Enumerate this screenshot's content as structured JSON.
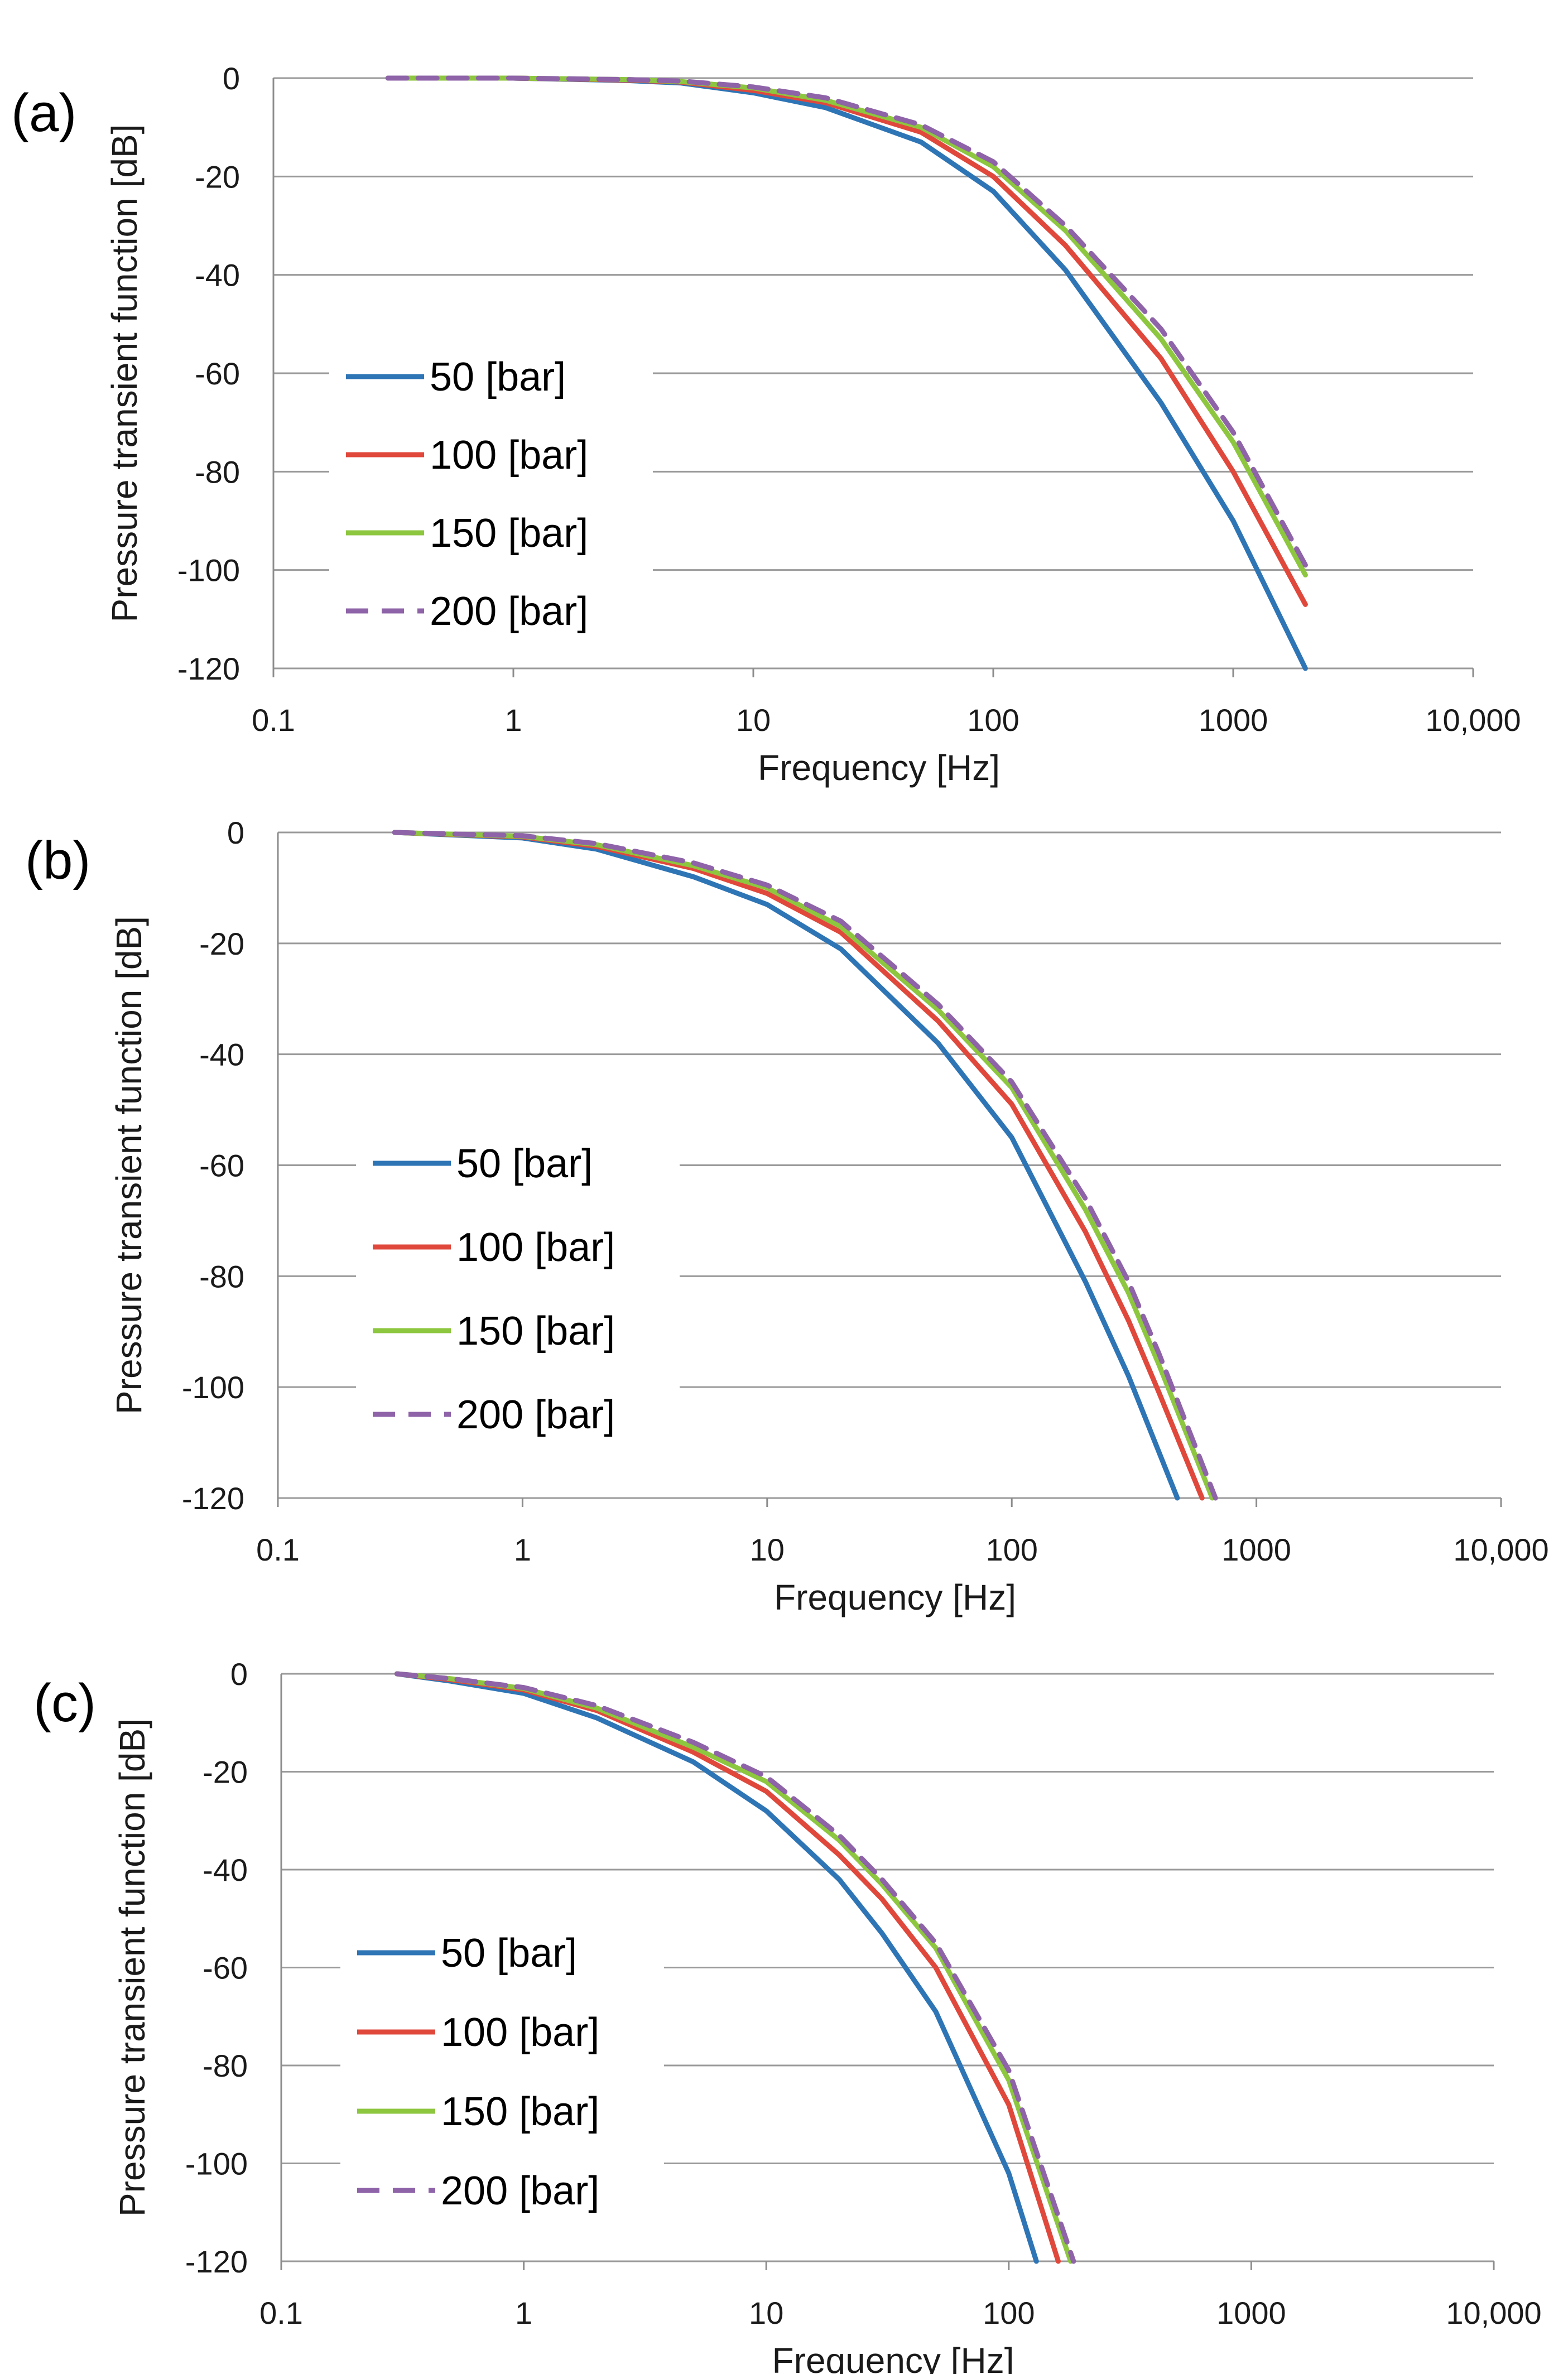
{
  "colors": {
    "series_50": "#2E75B6",
    "series_100": "#E0483C",
    "series_150": "#8DC63F",
    "series_200": "#8E63A8",
    "grid": "#9a9a9a",
    "text": "#1a1a1a"
  },
  "chart_data": [
    {
      "type": "line",
      "panel_label": "(a)",
      "title": "",
      "xlabel": "Frequency [Hz]",
      "ylabel": "Pressure transient function [dB]",
      "xscale": "log",
      "xlim": [
        0.1,
        10000
      ],
      "ylim": [
        -120,
        0
      ],
      "x_ticks": [
        0.1,
        1,
        10,
        100,
        1000,
        10000
      ],
      "x_tick_labels": [
        "0.1",
        "1",
        "10",
        "100",
        "1000",
        "10,000"
      ],
      "y_ticks": [
        0,
        -20,
        -40,
        -60,
        -80,
        -100,
        -120
      ],
      "y_tick_labels": [
        "0",
        "-20",
        "-40",
        "-60",
        "-80",
        "-100",
        "-120"
      ],
      "grid": "horizontal",
      "legend_position": "middle-left",
      "series": [
        {
          "name": "50 [bar]",
          "dash": "solid",
          "x": [
            0.3,
            1,
            3,
            5,
            10,
            20,
            50,
            100,
            200,
            500,
            1000,
            2000
          ],
          "y": [
            0,
            0,
            -0.5,
            -1,
            -3,
            -6,
            -13,
            -23,
            -39,
            -66,
            -90,
            -120
          ]
        },
        {
          "name": "100 [bar]",
          "dash": "solid",
          "x": [
            0.3,
            1,
            3,
            5,
            10,
            20,
            50,
            100,
            200,
            500,
            1000,
            2000
          ],
          "y": [
            0,
            0,
            -0.4,
            -0.8,
            -2.5,
            -5,
            -11,
            -20,
            -34,
            -57,
            -80,
            -107
          ]
        },
        {
          "name": "150 [bar]",
          "dash": "solid",
          "x": [
            0.3,
            1,
            3,
            5,
            10,
            20,
            50,
            100,
            200,
            500,
            1000,
            2000
          ],
          "y": [
            0,
            0,
            -0.3,
            -0.7,
            -2,
            -4.5,
            -10,
            -18,
            -31,
            -53,
            -74,
            -101
          ]
        },
        {
          "name": "200 [bar]",
          "dash": "dashed",
          "x": [
            0.3,
            1,
            3,
            5,
            10,
            20,
            50,
            100,
            200,
            500,
            1000,
            2000
          ],
          "y": [
            0,
            0,
            -0.3,
            -0.6,
            -1.8,
            -4,
            -9.5,
            -17,
            -30,
            -51,
            -72,
            -99
          ]
        }
      ]
    },
    {
      "type": "line",
      "panel_label": "(b)",
      "title": "",
      "xlabel": "Frequency [Hz]",
      "ylabel": "Pressure transient function [dB]",
      "xscale": "log",
      "xlim": [
        0.1,
        10000
      ],
      "ylim": [
        -120,
        0
      ],
      "x_ticks": [
        0.1,
        1,
        10,
        100,
        1000,
        10000
      ],
      "x_tick_labels": [
        "0.1",
        "1",
        "10",
        "100",
        "1000",
        "10,000"
      ],
      "y_ticks": [
        0,
        -20,
        -40,
        -60,
        -80,
        -100,
        -120
      ],
      "y_tick_labels": [
        "0",
        "-20",
        "-40",
        "-60",
        "-80",
        "-100",
        "-120"
      ],
      "grid": "horizontal",
      "legend_position": "middle-left",
      "series": [
        {
          "name": "50 [bar]",
          "dash": "solid",
          "x": [
            0.3,
            1,
            2,
            5,
            10,
            20,
            50,
            100,
            200,
            300,
            475
          ],
          "y": [
            0,
            -1,
            -3,
            -8,
            -13,
            -21,
            -38,
            -55,
            -81,
            -98,
            -120
          ]
        },
        {
          "name": "100 [bar]",
          "dash": "solid",
          "x": [
            0.3,
            1,
            2,
            5,
            10,
            20,
            50,
            100,
            200,
            300,
            400,
            600
          ],
          "y": [
            0,
            -0.8,
            -2.5,
            -6.5,
            -11,
            -18,
            -34,
            -49,
            -72,
            -88,
            -101,
            -120
          ]
        },
        {
          "name": "150 [bar]",
          "dash": "solid",
          "x": [
            0.3,
            1,
            2,
            5,
            10,
            20,
            50,
            100,
            200,
            300,
            400,
            660
          ],
          "y": [
            0,
            -0.7,
            -2.2,
            -6,
            -10,
            -17,
            -32,
            -46,
            -68,
            -83,
            -96,
            -120
          ]
        },
        {
          "name": "200 [bar]",
          "dash": "dashed",
          "x": [
            0.3,
            1,
            2,
            5,
            10,
            20,
            50,
            100,
            200,
            300,
            400,
            680
          ],
          "y": [
            0,
            -0.6,
            -2,
            -5.5,
            -9.5,
            -16,
            -31,
            -45,
            -66,
            -81,
            -94,
            -120
          ]
        }
      ]
    },
    {
      "type": "line",
      "panel_label": "(c)",
      "title": "",
      "xlabel": "Frequency [Hz]",
      "ylabel": "Pressure transient function [dB]",
      "xscale": "log",
      "xlim": [
        0.1,
        10000
      ],
      "ylim": [
        -120,
        0
      ],
      "x_ticks": [
        0.1,
        1,
        10,
        100,
        1000,
        10000
      ],
      "x_tick_labels": [
        "0.1",
        "1",
        "10",
        "100",
        "1000",
        "10,000"
      ],
      "y_ticks": [
        0,
        -20,
        -40,
        -60,
        -80,
        -100,
        -120
      ],
      "y_tick_labels": [
        "0",
        "-20",
        "-40",
        "-60",
        "-80",
        "-100",
        "-120"
      ],
      "grid": "horizontal",
      "legend_position": "middle-left",
      "series": [
        {
          "name": "50 [bar]",
          "dash": "solid",
          "x": [
            0.3,
            0.5,
            1,
            2,
            5,
            10,
            20,
            30,
            50,
            100,
            130
          ],
          "y": [
            0,
            -1.5,
            -4,
            -9,
            -18,
            -28,
            -42,
            -53,
            -69,
            -102,
            -120
          ]
        },
        {
          "name": "100 [bar]",
          "dash": "solid",
          "x": [
            0.3,
            0.5,
            1,
            2,
            5,
            10,
            20,
            30,
            50,
            100,
            160
          ],
          "y": [
            0,
            -1.2,
            -3.3,
            -7.5,
            -16,
            -24,
            -37,
            -46,
            -60,
            -88,
            -120
          ]
        },
        {
          "name": "150 [bar]",
          "dash": "solid",
          "x": [
            0.3,
            0.5,
            1,
            2,
            5,
            10,
            20,
            30,
            50,
            100,
            180
          ],
          "y": [
            0,
            -1,
            -3,
            -7,
            -15,
            -22,
            -34,
            -43,
            -56,
            -83,
            -120
          ]
        },
        {
          "name": "200 [bar]",
          "dash": "dashed",
          "x": [
            0.3,
            0.5,
            1,
            2,
            5,
            10,
            20,
            30,
            50,
            100,
            185
          ],
          "y": [
            0,
            -1,
            -2.8,
            -6.5,
            -14,
            -21,
            -33,
            -42,
            -55,
            -81,
            -120
          ]
        }
      ]
    }
  ]
}
